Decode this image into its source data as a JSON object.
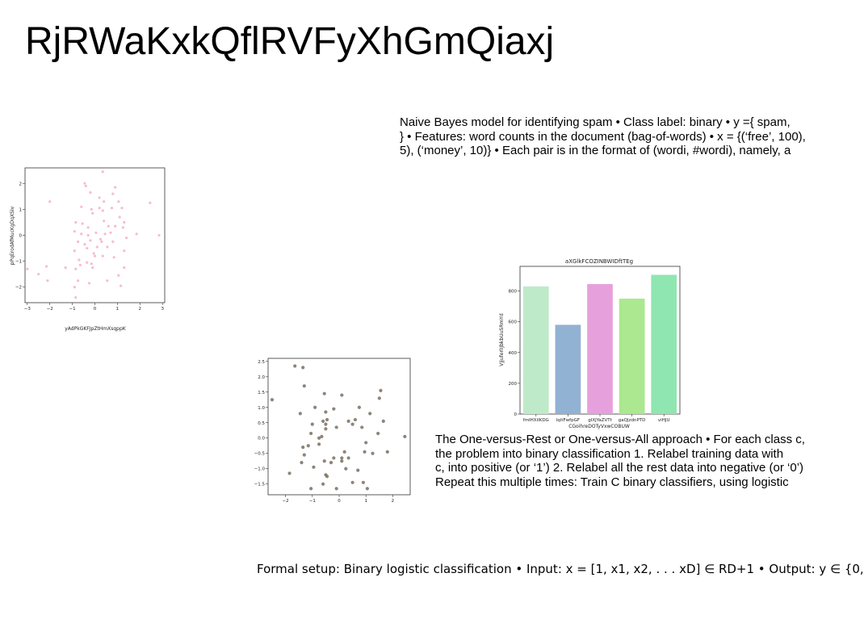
{
  "slide": {
    "title": "RjRWaKxkQflRVFyXhGmQiaxj",
    "paragraph1": [
      "Naive Bayes model for identifying spam • Class label: binary • y ={ spam,",
      "} • Features: word counts in the document (bag-of-words) • x = {(‘free’, 100),",
      "5), (‘money’, 10)} • Each pair is in the format of (wordi, #wordi), namely, a"
    ],
    "paragraph2": [
      "The One-versus-Rest or One-versus-All approach • For each class c,",
      "the problem into binary classification 1. Relabel training data with",
      "c, into positive (or ‘1’) 2. Relabel all the rest data into negative (or ‘0’)",
      "Repeat this multiple times: Train C binary classifiers, using logistic"
    ],
    "paragraph3": "Formal setup: Binary logistic classification • Input: x = [1, x1, x2, . . . xD] ∈ RD+1 • Output: y ∈ {0,"
  },
  "chart_data": [
    {
      "type": "scatter",
      "color": "#f4a6c0",
      "xlabel": "yAdPkGKFJpZtHmXsqppK",
      "ylabel": "pPqErodAfMucKgDqXSiv",
      "title": "",
      "xlim": [
        -3.1,
        3.1
      ],
      "ylim": [
        -2.6,
        2.6
      ],
      "xticks": [
        -3,
        -2,
        -1,
        0,
        1,
        2,
        3
      ],
      "yticks": [
        -2,
        -1,
        0,
        1,
        2
      ],
      "xticklabels": [
        "−3",
        "−2",
        "−1",
        "0",
        "1",
        "2",
        "3"
      ],
      "yticklabels": [
        "−2",
        "−1",
        "0",
        "1",
        "2"
      ],
      "points": [
        [
          0.35,
          2.45
        ],
        [
          -0.45,
          2.0
        ],
        [
          -0.4,
          1.9
        ],
        [
          0.9,
          1.85
        ],
        [
          -0.2,
          1.65
        ],
        [
          0.8,
          1.6
        ],
        [
          0.2,
          1.45
        ],
        [
          -2.0,
          1.3
        ],
        [
          2.45,
          1.25
        ],
        [
          0.4,
          1.3
        ],
        [
          1.05,
          1.3
        ],
        [
          -0.6,
          1.1
        ],
        [
          -0.15,
          1.0
        ],
        [
          0.2,
          1.05
        ],
        [
          0.75,
          1.05
        ],
        [
          1.2,
          1.05
        ],
        [
          -0.1,
          0.85
        ],
        [
          0.35,
          0.95
        ],
        [
          -0.85,
          0.5
        ],
        [
          -0.55,
          0.45
        ],
        [
          0.4,
          0.55
        ],
        [
          1.3,
          0.5
        ],
        [
          -0.3,
          0.3
        ],
        [
          0.6,
          0.35
        ],
        [
          0.9,
          0.35
        ],
        [
          1.25,
          0.3
        ],
        [
          -0.6,
          0.05
        ],
        [
          -0.3,
          0.0
        ],
        [
          -0.9,
          0.15
        ],
        [
          0.05,
          0.1
        ],
        [
          0.45,
          0.05
        ],
        [
          1.85,
          0.05
        ],
        [
          2.85,
          0.0
        ],
        [
          -0.75,
          -0.25
        ],
        [
          -0.2,
          -0.2
        ],
        [
          0.25,
          -0.15
        ],
        [
          0.8,
          -0.25
        ],
        [
          1.4,
          -0.1
        ],
        [
          -0.35,
          -0.5
        ],
        [
          0.1,
          -0.45
        ],
        [
          0.55,
          -0.45
        ],
        [
          -0.9,
          -0.6
        ],
        [
          -0.05,
          -0.7
        ],
        [
          0.35,
          -0.8
        ],
        [
          1.3,
          -0.6
        ],
        [
          -0.7,
          -0.95
        ],
        [
          -0.35,
          -1.05
        ],
        [
          -0.15,
          -1.1
        ],
        [
          0.85,
          -0.85
        ],
        [
          -1.3,
          -1.25
        ],
        [
          -2.15,
          -1.2
        ],
        [
          -0.65,
          -1.15
        ],
        [
          -0.1,
          -1.25
        ],
        [
          1.3,
          -1.25
        ],
        [
          -2.5,
          -1.5
        ],
        [
          -0.85,
          -1.3
        ],
        [
          -2.1,
          -1.75
        ],
        [
          1.05,
          -1.55
        ],
        [
          -0.75,
          -1.75
        ],
        [
          -0.25,
          -1.85
        ],
        [
          1.15,
          -1.95
        ],
        [
          -0.9,
          -2.0
        ],
        [
          -0.85,
          -2.4
        ],
        [
          0.55,
          -1.75
        ],
        [
          -3.0,
          -1.3
        ],
        [
          0.0,
          -0.8
        ],
        [
          0.3,
          -0.25
        ],
        [
          0.7,
          0.1
        ],
        [
          -0.45,
          -0.35
        ],
        [
          1.1,
          0.7
        ]
      ]
    },
    {
      "type": "scatter",
      "color": "#7a6e62",
      "xlabel": "",
      "ylabel": "",
      "title": "",
      "xlim": [
        -2.65,
        2.65
      ],
      "ylim": [
        -1.85,
        2.6
      ],
      "xticks": [
        -2,
        -1,
        0,
        1,
        2
      ],
      "yticks": [
        -1.5,
        -1.0,
        -0.5,
        0.0,
        0.5,
        1.0,
        1.5,
        2.0,
        2.5
      ],
      "xticklabels": [
        "−2",
        "−1",
        "0",
        "1",
        "2"
      ],
      "yticklabels": [
        "−1.5",
        "−1.0",
        "−0.5",
        "0.0",
        "0.5",
        "1.0",
        "1.5",
        "2.0",
        "2.5"
      ],
      "points": [
        [
          -1.65,
          2.35
        ],
        [
          -1.35,
          2.3
        ],
        [
          -1.3,
          1.7
        ],
        [
          -2.5,
          1.25
        ],
        [
          -0.55,
          1.45
        ],
        [
          0.1,
          1.4
        ],
        [
          1.55,
          1.55
        ],
        [
          1.5,
          1.3
        ],
        [
          -0.9,
          1.0
        ],
        [
          -0.2,
          0.95
        ],
        [
          0.75,
          1.0
        ],
        [
          -0.5,
          0.85
        ],
        [
          -1.45,
          0.8
        ],
        [
          1.15,
          0.8
        ],
        [
          -0.6,
          0.55
        ],
        [
          -0.45,
          0.6
        ],
        [
          0.35,
          0.55
        ],
        [
          0.6,
          0.6
        ],
        [
          -1.0,
          0.45
        ],
        [
          -0.5,
          0.45
        ],
        [
          0.5,
          0.45
        ],
        [
          1.65,
          0.55
        ],
        [
          -0.5,
          0.3
        ],
        [
          -0.1,
          0.35
        ],
        [
          0.85,
          0.35
        ],
        [
          -1.05,
          0.15
        ],
        [
          1.45,
          0.15
        ],
        [
          -0.65,
          0.05
        ],
        [
          2.45,
          0.05
        ],
        [
          -1.35,
          -0.3
        ],
        [
          -1.15,
          -0.25
        ],
        [
          -0.75,
          -0.2
        ],
        [
          1.0,
          -0.15
        ],
        [
          -1.3,
          -0.55
        ],
        [
          0.2,
          -0.45
        ],
        [
          0.95,
          -0.45
        ],
        [
          1.25,
          -0.5
        ],
        [
          1.8,
          -0.45
        ],
        [
          -0.2,
          -0.65
        ],
        [
          0.1,
          -0.65
        ],
        [
          0.35,
          -0.65
        ],
        [
          -1.4,
          -0.8
        ],
        [
          -0.55,
          -0.75
        ],
        [
          -0.3,
          -0.8
        ],
        [
          0.1,
          -0.75
        ],
        [
          -0.95,
          -0.95
        ],
        [
          0.7,
          -1.05
        ],
        [
          -1.85,
          -1.15
        ],
        [
          -0.5,
          -1.2
        ],
        [
          -0.45,
          -1.25
        ],
        [
          -0.6,
          -1.5
        ],
        [
          0.5,
          -1.45
        ],
        [
          0.9,
          -1.45
        ],
        [
          -1.05,
          -1.65
        ],
        [
          -0.1,
          -1.65
        ],
        [
          1.05,
          -1.65
        ],
        [
          0.25,
          -1.0
        ],
        [
          -0.75,
          0.0
        ]
      ]
    },
    {
      "type": "bar",
      "title": "aXGlkFCOZINBWIDftTEg",
      "xlabel": "CGoihreDOTyVxwCOBUW",
      "ylabel": "VJjuferlIJbkbUuSRmYd",
      "categories": [
        "fmIHXiIKDG",
        "lqitFwfpGF",
        "gIXJYaZVTt",
        "gaQJzdnPTD",
        "viHJU"
      ],
      "values": [
        830,
        580,
        845,
        750,
        905
      ],
      "colors": [
        "#bfeac9",
        "#92b2d4",
        "#e6a1dd",
        "#abe88f",
        "#90e6b0"
      ],
      "ylim": [
        0,
        960
      ],
      "yticks": [
        0,
        200,
        400,
        600,
        800
      ],
      "yticklabels": [
        "0",
        "200",
        "400",
        "600",
        "800"
      ]
    }
  ]
}
